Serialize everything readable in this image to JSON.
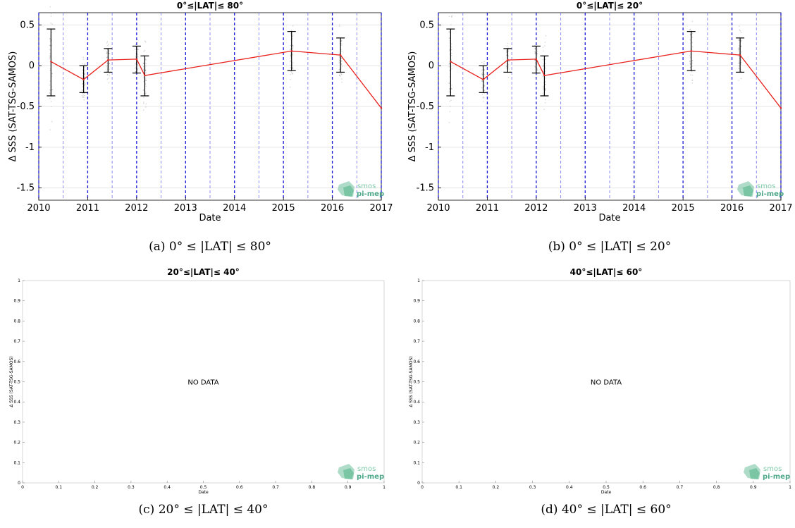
{
  "chart_data": [
    {
      "type": "line",
      "title": "0°≤|LAT|≤ 80°",
      "xlabel": "Date",
      "ylabel": "Δ SSS (SAT-TSG-SAMOS)",
      "caption": "(a) 0° ≤ |LAT| ≤ 80°",
      "xlim": [
        2010,
        2017
      ],
      "ylim": [
        -1.65,
        0.65
      ],
      "xticks": [
        "2010",
        "2011",
        "2012",
        "2013",
        "2014",
        "2015",
        "2016",
        "2017"
      ],
      "yticks": [
        "0.5",
        "0",
        "-0.5",
        "-1",
        "-1.5"
      ],
      "grid": true,
      "series": [
        {
          "x": [
            "2010-04",
            "2010-12",
            "2011-06",
            "2012-01",
            "2012-03",
            "2015-03",
            "2016-03",
            "2017-01"
          ],
          "values": [
            0.05,
            -0.17,
            0.07,
            0.08,
            -0.12,
            0.18,
            0.13,
            -0.52
          ],
          "error_low": [
            -0.37,
            -0.33,
            -0.08,
            -0.09,
            -0.37,
            -0.06,
            -0.08,
            null
          ],
          "error_high": [
            0.45,
            0.0,
            0.21,
            0.24,
            0.12,
            0.42,
            0.34,
            null
          ],
          "color": "#e8211c"
        }
      ]
    },
    {
      "type": "line",
      "title": "0°≤|LAT|≤ 20°",
      "xlabel": "Date",
      "ylabel": "Δ SSS (SAT-TSG-SAMOS)",
      "caption": "(b) 0° ≤ |LAT| ≤ 20°",
      "xlim": [
        2010,
        2017
      ],
      "ylim": [
        -1.65,
        0.65
      ],
      "xticks": [
        "2010",
        "2011",
        "2012",
        "2013",
        "2014",
        "2015",
        "2016",
        "2017"
      ],
      "yticks": [
        "0.5",
        "0",
        "-0.5",
        "-1",
        "-1.5"
      ],
      "grid": true,
      "series": [
        {
          "x": [
            "2010-04",
            "2010-12",
            "2011-06",
            "2012-01",
            "2012-03",
            "2015-03",
            "2016-03",
            "2017-01"
          ],
          "values": [
            0.05,
            -0.17,
            0.07,
            0.08,
            -0.12,
            0.18,
            0.13,
            -0.52
          ],
          "error_low": [
            -0.37,
            -0.33,
            -0.08,
            -0.09,
            -0.37,
            -0.06,
            -0.08,
            null
          ],
          "error_high": [
            0.45,
            0.0,
            0.21,
            0.24,
            0.12,
            0.42,
            0.34,
            null
          ],
          "color": "#e8211c"
        }
      ]
    },
    {
      "type": "line",
      "title": "20°≤|LAT|≤ 40°",
      "xlabel": "Date",
      "ylabel": "Δ SSS (SAT-TSG-SAMOS)",
      "caption": "(c) 20° ≤ |LAT| ≤ 40°",
      "xlim": [
        0,
        1
      ],
      "ylim": [
        0,
        1
      ],
      "xticks": [
        "0",
        "0.1",
        "0.2",
        "0.3",
        "0.4",
        "0.5",
        "0.6",
        "0.7",
        "0.8",
        "0.9",
        "1"
      ],
      "yticks": [
        "1",
        "0.9",
        "0.8",
        "0.7",
        "0.6",
        "0.5",
        "0.4",
        "0.3",
        "0.2",
        "0.1",
        "0"
      ],
      "annotation": "NO DATA",
      "series": []
    },
    {
      "type": "line",
      "title": "40°≤|LAT|≤ 60°",
      "xlabel": "Date",
      "ylabel": "Δ SSS (SAT-TSG-SAMOS)",
      "caption": "(d) 40° ≤ |LAT| ≤ 60°",
      "xlim": [
        0,
        1
      ],
      "ylim": [
        0,
        1
      ],
      "xticks": [
        "0",
        "0.1",
        "0.2",
        "0.3",
        "0.4",
        "0.5",
        "0.6",
        "0.7",
        "0.8",
        "0.9",
        "1"
      ],
      "yticks": [
        "1",
        "0.9",
        "0.8",
        "0.7",
        "0.6",
        "0.5",
        "0.4",
        "0.3",
        "0.2",
        "0.1",
        "0"
      ],
      "annotation": "NO DATA",
      "series": []
    }
  ],
  "logo": {
    "line1": "smos",
    "line2": "pi-mep"
  },
  "colors": {
    "line": "#e8211c",
    "error_bar": "#000000",
    "scatter": "#8c8c8c",
    "major_vline": "#1a1ad6",
    "minor_vline": "#8c8cf0",
    "grid": "#e4e4e4",
    "logo": "#6dbf9a"
  }
}
